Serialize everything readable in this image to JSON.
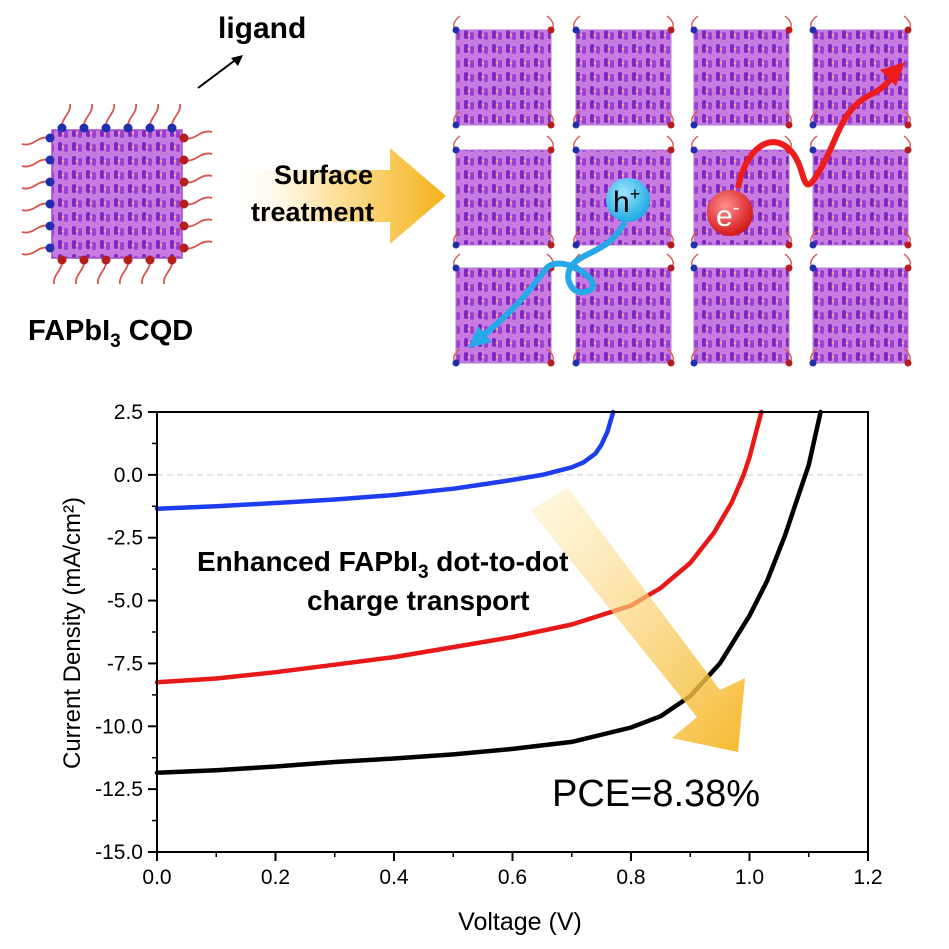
{
  "schematic": {
    "ligand_label": "ligand",
    "cqd_label_prefix": "FAPbI",
    "cqd_label_sub": "3",
    "cqd_label_suffix": " CQD",
    "arrow_line1": "Surface",
    "arrow_line2": "treatment",
    "hole_label": "h",
    "hole_sup": "+",
    "electron_label": "e",
    "electron_sup": "-",
    "colors": {
      "cube": "#b65ad6",
      "rod": "#8a2cc6",
      "ligand": "#d9534f",
      "cation_blue": "#1f2fae",
      "cation_red": "#b51e1e",
      "hole": "#27b6ef",
      "electron": "#e21c1c",
      "arrow": "#f5b31c"
    }
  },
  "chart_data": {
    "type": "line",
    "title": "",
    "xlabel": "Voltage (V)",
    "ylabel": "Current Density (mA/cm²)",
    "xlim": [
      0.0,
      1.2
    ],
    "ylim": [
      -15.0,
      2.5
    ],
    "x_ticks": [
      "0.0",
      "0.2",
      "0.4",
      "0.6",
      "0.8",
      "1.0",
      "1.2"
    ],
    "y_ticks": [
      "2.5",
      "0.0",
      "-2.5",
      "-5.0",
      "-7.5",
      "-10.0",
      "-12.5",
      "-15.0"
    ],
    "series": [
      {
        "name": "blue",
        "color": "#1f3df0",
        "x": [
          0.0,
          0.1,
          0.2,
          0.3,
          0.4,
          0.5,
          0.55,
          0.6,
          0.65,
          0.7,
          0.72,
          0.74,
          0.75,
          0.76,
          0.77
        ],
        "y": [
          -1.35,
          -1.25,
          -1.12,
          -0.98,
          -0.8,
          -0.55,
          -0.38,
          -0.2,
          0.0,
          0.3,
          0.5,
          0.85,
          1.2,
          1.7,
          2.5
        ]
      },
      {
        "name": "red",
        "color": "#e81818",
        "x": [
          0.0,
          0.1,
          0.2,
          0.3,
          0.4,
          0.5,
          0.6,
          0.7,
          0.8,
          0.85,
          0.9,
          0.94,
          0.97,
          0.99,
          1.0,
          1.01,
          1.02
        ],
        "y": [
          -8.25,
          -8.1,
          -7.85,
          -7.55,
          -7.25,
          -6.85,
          -6.45,
          -5.95,
          -5.2,
          -4.5,
          -3.5,
          -2.3,
          -1.1,
          0.0,
          0.7,
          1.6,
          2.5
        ]
      },
      {
        "name": "black",
        "color": "#000000",
        "x": [
          0.0,
          0.1,
          0.2,
          0.3,
          0.4,
          0.5,
          0.6,
          0.7,
          0.8,
          0.85,
          0.9,
          0.95,
          1.0,
          1.03,
          1.06,
          1.08,
          1.1,
          1.12
        ],
        "y": [
          -11.85,
          -11.75,
          -11.6,
          -11.42,
          -11.28,
          -11.12,
          -10.9,
          -10.62,
          -10.05,
          -9.6,
          -8.8,
          -7.5,
          -5.6,
          -4.2,
          -2.4,
          -1.0,
          0.4,
          2.5
        ]
      }
    ],
    "annotations": {
      "enhanced_prefix": "Enhanced FAPbI",
      "enhanced_sub": "3",
      "enhanced_suffix": " dot-to-dot",
      "enhanced_line2": "charge transport",
      "pce": "PCE=8.38%"
    }
  }
}
